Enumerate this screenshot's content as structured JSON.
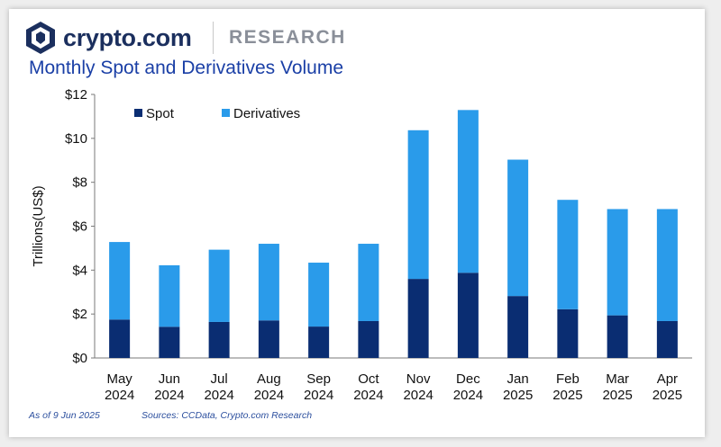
{
  "header": {
    "brand": "crypto.com",
    "section": "RESEARCH",
    "logo_icon": "crypto-com-lion-shield-icon",
    "brand_color": "#1b2f5e"
  },
  "footer": {
    "as_of": "As of 9 Jun 2025",
    "sources": "Sources: CCData, Crypto.com Research"
  },
  "chart_data": {
    "type": "bar",
    "stacked": true,
    "title": "Monthly Spot and Derivatives Volume",
    "ylabel": "Trillions(US$)",
    "xlabel": "",
    "ylim": [
      0,
      12
    ],
    "yticks": [
      "$0",
      "$2",
      "$4",
      "$6",
      "$8",
      "$10",
      "$12"
    ],
    "ytick_values": [
      0,
      2,
      4,
      6,
      8,
      10,
      12
    ],
    "grid": false,
    "legend_position": "top-left",
    "categories": [
      [
        "May",
        "2024"
      ],
      [
        "Jun",
        "2024"
      ],
      [
        "Jul",
        "2024"
      ],
      [
        "Aug",
        "2024"
      ],
      [
        "Sep",
        "2024"
      ],
      [
        "Oct",
        "2024"
      ],
      [
        "Nov",
        "2024"
      ],
      [
        "Dec",
        "2024"
      ],
      [
        "Jan",
        "2025"
      ],
      [
        "Feb",
        "2025"
      ],
      [
        "Mar",
        "2025"
      ],
      [
        "Apr",
        "2025"
      ]
    ],
    "series": [
      {
        "name": "Spot",
        "color": "#0a2d72",
        "values": [
          1.75,
          1.42,
          1.64,
          1.71,
          1.43,
          1.68,
          3.6,
          3.88,
          2.82,
          2.22,
          1.94,
          1.68
        ]
      },
      {
        "name": "Derivatives",
        "color": "#2a9bea",
        "values": [
          3.53,
          2.8,
          3.29,
          3.49,
          2.91,
          3.52,
          6.77,
          7.41,
          6.21,
          4.98,
          4.84,
          5.1
        ]
      }
    ]
  }
}
